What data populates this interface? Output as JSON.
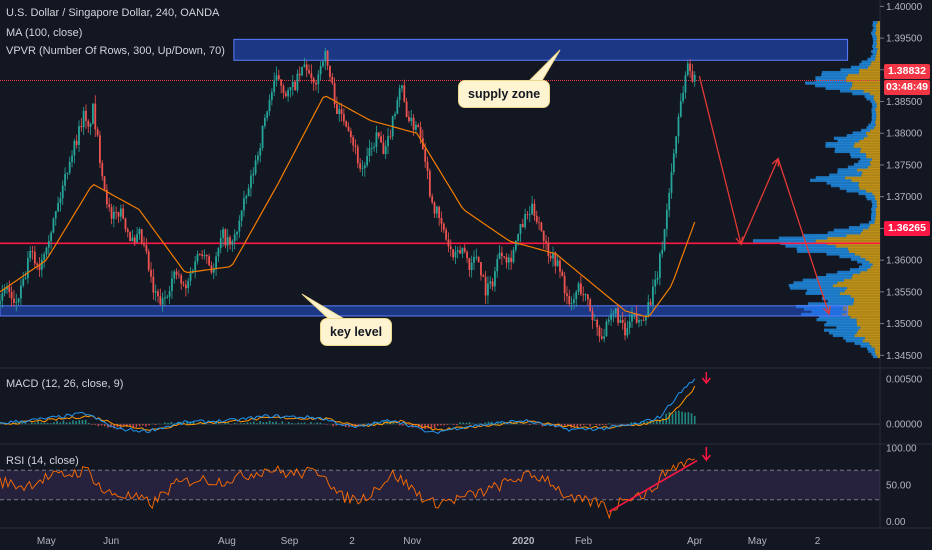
{
  "header": {
    "symbol_line": "U.S. Dollar / Singapore Dollar, 240, OANDA",
    "ma_line": "MA (100, close)",
    "vpvr_line": "VPVR (Number Of Rows, 300, Up/Down, 70)"
  },
  "macd_legend": "MACD (12, 26, close, 9)",
  "rsi_legend": "RSI (14, close)",
  "annotations": {
    "supply_zone": "supply zone",
    "key_level": "key level"
  },
  "price_tags": {
    "last_price": "1.38832",
    "countdown": "03:48:49",
    "level_price": "1.36265"
  },
  "colors": {
    "background": "#131722",
    "candle_up": "#26a69a",
    "candle_down": "#ef5350",
    "ma_line": "#f57c00",
    "zone_fill": "#2962ff",
    "level_line": "#ff1744",
    "vpvr_up": "#2196f3",
    "vpvr_down": "#d4a017",
    "macd_line": "#2196f3",
    "signal_line": "#ff9800",
    "rsi_line": "#ff6d00",
    "rsi_band": "#7e57c2"
  },
  "chart_data": [
    {
      "type": "candlestick",
      "title": "U.S. Dollar / Singapore Dollar, 240, OANDA",
      "x_ticks": [
        "May",
        "Jun",
        "Aug",
        "Sep",
        "2",
        "Nov",
        "2020",
        "Feb",
        "Apr",
        "May",
        "2"
      ],
      "y_ticks": [
        "1.40000",
        "1.39500",
        "1.39000",
        "1.38500",
        "1.38000",
        "1.37500",
        "1.37000",
        "1.36500",
        "1.36000",
        "1.35500",
        "1.35000",
        "1.34500"
      ],
      "ylim": [
        1.343,
        1.401
      ],
      "close_path": [
        [
          0,
          1.353
        ],
        [
          0.3,
          1.356
        ],
        [
          0.6,
          1.3525
        ],
        [
          1,
          1.356
        ],
        [
          1.3,
          1.361
        ],
        [
          1.7,
          1.359
        ],
        [
          2,
          1.363
        ],
        [
          2.3,
          1.366
        ],
        [
          2.6,
          1.37
        ],
        [
          3,
          1.376
        ],
        [
          3.3,
          1.379
        ],
        [
          3.6,
          1.383
        ],
        [
          3.8,
          1.38
        ],
        [
          4,
          1.384
        ],
        [
          4.2,
          1.379
        ],
        [
          4.5,
          1.372
        ],
        [
          4.8,
          1.366
        ],
        [
          5.2,
          1.368
        ],
        [
          5.5,
          1.365
        ],
        [
          5.8,
          1.362
        ],
        [
          6,
          1.364
        ],
        [
          6.3,
          1.361
        ],
        [
          6.6,
          1.355
        ],
        [
          7,
          1.353
        ],
        [
          7.3,
          1.356
        ],
        [
          7.6,
          1.358
        ],
        [
          8,
          1.355
        ],
        [
          8.4,
          1.36
        ],
        [
          8.8,
          1.362
        ],
        [
          9.2,
          1.358
        ],
        [
          9.6,
          1.364
        ],
        [
          10,
          1.362
        ],
        [
          10.4,
          1.367
        ],
        [
          10.8,
          1.372
        ],
        [
          11.2,
          1.378
        ],
        [
          11.6,
          1.385
        ],
        [
          12,
          1.389
        ],
        [
          12.4,
          1.386
        ],
        [
          12.8,
          1.388
        ],
        [
          13.2,
          1.391
        ],
        [
          13.5,
          1.387
        ],
        [
          13.8,
          1.39
        ],
        [
          14,
          1.393
        ],
        [
          14.3,
          1.388
        ],
        [
          14.6,
          1.383
        ],
        [
          15,
          1.382
        ],
        [
          15.3,
          1.378
        ],
        [
          15.6,
          1.374
        ],
        [
          16,
          1.377
        ],
        [
          16.3,
          1.38
        ],
        [
          16.6,
          1.376
        ],
        [
          17,
          1.383
        ],
        [
          17.3,
          1.388
        ],
        [
          17.5,
          1.384
        ],
        [
          17.8,
          1.381
        ],
        [
          18,
          1.382
        ],
        [
          18.3,
          1.378
        ],
        [
          18.6,
          1.37
        ],
        [
          19,
          1.366
        ],
        [
          19.3,
          1.363
        ],
        [
          19.6,
          1.36
        ],
        [
          20,
          1.362
        ],
        [
          20.3,
          1.359
        ],
        [
          20.6,
          1.361
        ],
        [
          21,
          1.355
        ],
        [
          21.3,
          1.357
        ],
        [
          21.6,
          1.362
        ],
        [
          22,
          1.36
        ],
        [
          22.3,
          1.363
        ],
        [
          22.6,
          1.366
        ],
        [
          23,
          1.368
        ],
        [
          23.3,
          1.366
        ],
        [
          23.6,
          1.362
        ],
        [
          24,
          1.36
        ],
        [
          24.3,
          1.357
        ],
        [
          24.6,
          1.352
        ],
        [
          25,
          1.356
        ],
        [
          25.3,
          1.354
        ],
        [
          25.6,
          1.351
        ],
        [
          26,
          1.348
        ],
        [
          26.3,
          1.35
        ],
        [
          26.6,
          1.352
        ],
        [
          27,
          1.348
        ],
        [
          27.3,
          1.351
        ],
        [
          27.6,
          1.35
        ],
        [
          28,
          1.353
        ],
        [
          28.3,
          1.356
        ],
        [
          28.5,
          1.36
        ],
        [
          28.7,
          1.365
        ],
        [
          28.9,
          1.371
        ],
        [
          29.1,
          1.377
        ],
        [
          29.3,
          1.383
        ],
        [
          29.5,
          1.387
        ],
        [
          29.7,
          1.391
        ],
        [
          29.9,
          1.389
        ],
        [
          30,
          1.3883
        ]
      ],
      "ma_path": [
        [
          0,
          1.355
        ],
        [
          2,
          1.36
        ],
        [
          4,
          1.372
        ],
        [
          6,
          1.368
        ],
        [
          8,
          1.358
        ],
        [
          10,
          1.359
        ],
        [
          12,
          1.372
        ],
        [
          14,
          1.386
        ],
        [
          16,
          1.382
        ],
        [
          18,
          1.38
        ],
        [
          20,
          1.368
        ],
        [
          22,
          1.363
        ],
        [
          24,
          1.361
        ],
        [
          26,
          1.355
        ],
        [
          27,
          1.352
        ],
        [
          28,
          1.351
        ],
        [
          29,
          1.356
        ],
        [
          30,
          1.366
        ]
      ],
      "zones": [
        {
          "label": "supply zone",
          "from": 1.3915,
          "to": 1.3948,
          "x_from": 10.1,
          "x_to": 36.6
        },
        {
          "label": "key level",
          "from": 1.3512,
          "to": 1.3528,
          "x_from": 0,
          "x_to": 36.6
        }
      ],
      "horizontal_levels": [
        1.38832,
        1.36265
      ],
      "projection_path": [
        [
          30.2,
          1.389
        ],
        [
          32,
          1.3625
        ],
        [
          33.6,
          1.376
        ],
        [
          35.8,
          1.3515
        ]
      ],
      "vpvr_peaks": [
        1.3883,
        1.378,
        1.3725,
        1.3625,
        1.356,
        1.352,
        1.3485
      ]
    },
    {
      "type": "line",
      "title": "MACD (12, 26, close, 9)",
      "y_ticks": [
        "0.00500",
        "0.00000"
      ],
      "ylim": [
        -0.0022,
        0.0062
      ],
      "series": [
        {
          "name": "MACD",
          "values": [
            [
              0,
              0.0001
            ],
            [
              2,
              0.0006
            ],
            [
              3.7,
              0.0012
            ],
            [
              5,
              -0.0005
            ],
            [
              6.3,
              -0.0008
            ],
            [
              8,
              0.0002
            ],
            [
              10,
              0.0004
            ],
            [
              11.6,
              0.0009
            ],
            [
              13.8,
              0.0007
            ],
            [
              15.3,
              -0.0004
            ],
            [
              17,
              0.0005
            ],
            [
              18.6,
              -0.001
            ],
            [
              20,
              -0.0003
            ],
            [
              22.6,
              0.0004
            ],
            [
              24.6,
              -0.0006
            ],
            [
              26,
              -0.0005
            ],
            [
              27.5,
              0.0
            ],
            [
              28.5,
              0.0008
            ],
            [
              29.2,
              0.003
            ],
            [
              29.8,
              0.0046
            ],
            [
              30,
              0.0049
            ]
          ]
        },
        {
          "name": "Signal",
          "values": [
            [
              0,
              0.0
            ],
            [
              2,
              0.0004
            ],
            [
              3.9,
              0.0009
            ],
            [
              5.3,
              -0.0002
            ],
            [
              6.6,
              -0.0006
            ],
            [
              8,
              0.0
            ],
            [
              10,
              0.0003
            ],
            [
              11.8,
              0.0007
            ],
            [
              14,
              0.0006
            ],
            [
              15.6,
              -0.0002
            ],
            [
              17.3,
              0.0003
            ],
            [
              18.9,
              -0.0007
            ],
            [
              20.3,
              -0.0003
            ],
            [
              22.9,
              0.0003
            ],
            [
              24.9,
              -0.0004
            ],
            [
              26.3,
              -0.0004
            ],
            [
              27.8,
              0.0
            ],
            [
              28.8,
              0.0006
            ],
            [
              29.5,
              0.0024
            ],
            [
              30,
              0.0041
            ]
          ]
        }
      ]
    },
    {
      "type": "line",
      "title": "RSI (14, close)",
      "y_ticks": [
        "100.00",
        "50.00",
        "0.00"
      ],
      "ylim": [
        0,
        100
      ],
      "bands": [
        30,
        70
      ],
      "series": [
        {
          "name": "RSI",
          "values": [
            [
              0,
              55
            ],
            [
              1,
              48
            ],
            [
              2,
              60
            ],
            [
              3,
              65
            ],
            [
              3.8,
              70
            ],
            [
              4.5,
              40
            ],
            [
              5.5,
              35
            ],
            [
              6.6,
              25
            ],
            [
              7.5,
              50
            ],
            [
              8.5,
              58
            ],
            [
              9.5,
              55
            ],
            [
              10.5,
              62
            ],
            [
              11.6,
              72
            ],
            [
              12.5,
              65
            ],
            [
              14,
              68
            ],
            [
              14.6,
              35
            ],
            [
              15.6,
              30
            ],
            [
              17,
              65
            ],
            [
              18.6,
              25
            ],
            [
              19.6,
              30
            ],
            [
              21,
              42
            ],
            [
              22.6,
              62
            ],
            [
              23.6,
              60
            ],
            [
              24.6,
              30
            ],
            [
              26,
              25
            ],
            [
              26.3,
              12
            ],
            [
              27,
              35
            ],
            [
              28,
              38
            ],
            [
              28.8,
              70
            ],
            [
              29.5,
              80
            ],
            [
              30,
              84
            ]
          ]
        }
      ],
      "trendline": [
        [
          26.3,
          14
        ],
        [
          30.1,
          83
        ]
      ]
    }
  ]
}
